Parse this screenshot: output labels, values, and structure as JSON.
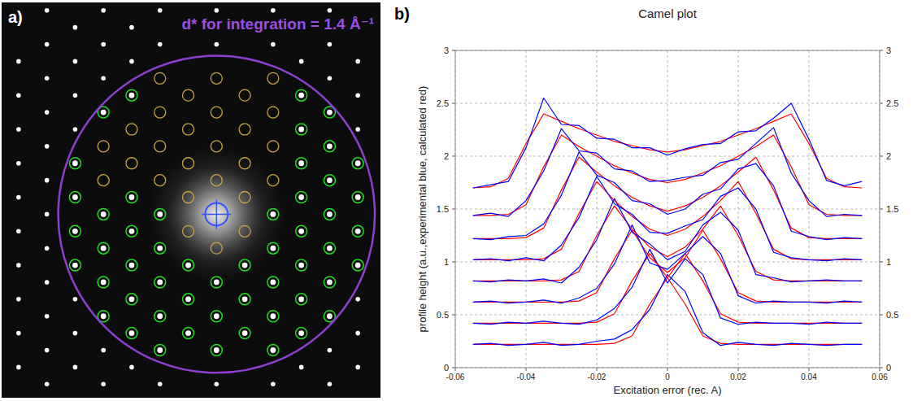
{
  "chart_data": [
    {
      "type": "scatter",
      "panel": "a)",
      "title": "d* for integration = 1.4 Å⁻¹",
      "integration_d": 1.4,
      "xlim": [
        -1.9,
        1.45
      ],
      "ylim": [
        -1.62,
        1.87
      ],
      "tick_labels": false,
      "grid": false,
      "series": [
        {
          "color": "#22dd22",
          "marker": "ring-dot",
          "x": [
            0,
            0,
            0,
            0.25,
            0.25,
            0.25,
            -0.25,
            -0.25,
            -0.25,
            0.5,
            0.5,
            0.5,
            0.5,
            0.5,
            -0.5,
            -0.5,
            -0.5,
            -0.5,
            -0.5,
            0.75,
            0.75,
            0.75,
            0.75,
            0.75,
            0.75,
            0.75,
            0.75,
            -0.75,
            -0.75,
            -0.75,
            -0.75,
            -0.75,
            -0.75,
            1,
            1,
            1,
            1,
            1,
            1,
            1,
            -1,
            -1,
            -1,
            -1,
            -1,
            1.25,
            1.25,
            1.25,
            1.25,
            -1.25,
            -1.25,
            -1.25,
            -1.25
          ],
          "values": [
            -1.2,
            -0.9,
            -0.6,
            -1.05,
            -0.75,
            -0.45,
            -1.05,
            -0.75,
            -0.45,
            -1.2,
            -0.9,
            -0.6,
            -0.3,
            0,
            -1.2,
            -0.9,
            -0.6,
            -0.3,
            0,
            -1.05,
            -0.75,
            -0.45,
            -0.15,
            0.15,
            0.45,
            0.75,
            1.05,
            -1.05,
            -0.75,
            -0.45,
            -0.15,
            0.15,
            1.05,
            -0.9,
            -0.6,
            -0.3,
            0,
            0.3,
            0.6,
            0.9,
            -0.9,
            -0.6,
            -0.3,
            0,
            0.9,
            -0.45,
            -0.15,
            0.15,
            0.45,
            -0.45,
            -0.15,
            0.15,
            0.45
          ]
        },
        {
          "color": "#c9a447",
          "marker": "ring",
          "x": [
            0,
            0,
            0,
            0,
            0,
            0.25,
            0.25,
            0.25,
            0.25,
            0.25,
            -0.25,
            -0.25,
            -0.25,
            -0.25,
            -0.25,
            0.5,
            0.5,
            0.5,
            0.5,
            -0.5,
            -0.5,
            -0.5,
            -0.5,
            -0.75,
            -0.75,
            -1,
            -1
          ],
          "values": [
            -0.3,
            0.3,
            0.6,
            0.9,
            1.2,
            -0.15,
            0.15,
            0.45,
            0.75,
            1.05,
            -0.15,
            0.15,
            0.45,
            0.75,
            1.05,
            0.3,
            0.6,
            0.9,
            1.2,
            0.3,
            0.6,
            0.9,
            1.2,
            0.45,
            0.75,
            0.3,
            0.6
          ]
        },
        {
          "color": "#ffffff",
          "marker": "dot",
          "x": [
            0,
            0,
            0,
            0.5,
            0.5,
            0.5,
            -0.5,
            -0.5,
            -0.5,
            0.75,
            0.75,
            -0.75,
            -0.75,
            -0.75,
            1,
            1,
            1,
            1,
            1,
            -1,
            -1,
            -1,
            -1,
            -1,
            1.25,
            1.25,
            1.25,
            1.25,
            1.25,
            1.25,
            -1.25,
            -1.25,
            -1.25,
            -1.25,
            -1.25,
            -1.25,
            -1.25,
            -1.5,
            -1.5,
            -1.5,
            -1.5,
            -1.5,
            -1.5,
            -1.5,
            -1.5,
            -1.5,
            -1.5,
            -1.5,
            -1.5,
            -1.75,
            -1.75,
            -1.75,
            -1.75,
            -1.75,
            -1.75,
            -1.75,
            -1.75,
            -1.75,
            -1.75
          ],
          "values": [
            1.5,
            1.8,
            -1.5,
            1.5,
            1.8,
            -1.5,
            1.5,
            1.8,
            -1.5,
            1.35,
            -1.35,
            1.35,
            1.65,
            -1.35,
            1.2,
            1.5,
            1.8,
            -1.2,
            -1.5,
            1.2,
            1.5,
            1.8,
            -1.2,
            -1.5,
            0.75,
            1.05,
            1.35,
            -0.75,
            -1.05,
            -1.35,
            0.75,
            1.05,
            1.35,
            1.65,
            -0.75,
            -1.05,
            -1.35,
            -1.5,
            -1.2,
            -0.9,
            -0.6,
            -0.3,
            0,
            0.3,
            0.6,
            0.9,
            1.2,
            1.5,
            1.8,
            -1.35,
            -1.05,
            -0.75,
            -0.45,
            -0.15,
            0.15,
            0.45,
            0.75,
            1.05,
            1.35
          ]
        }
      ]
    },
    {
      "type": "line",
      "panel": "b)",
      "title": "Camel plot",
      "x_label": "Excitation error (rec. A)",
      "y_label": "profile height (a.u.,experimental blue, calculated red)",
      "xlim": [
        -0.06,
        0.06
      ],
      "xticks": [
        -0.06,
        -0.04,
        -0.02,
        0,
        0.02,
        0.04,
        0.06
      ],
      "ylim": [
        0,
        3
      ],
      "yticks": [
        0,
        0.5,
        1,
        1.5,
        2,
        2.5,
        3
      ],
      "grid": true,
      "x": [
        -0.055,
        -0.05,
        -0.045,
        -0.04,
        -0.035,
        -0.03,
        -0.025,
        -0.02,
        -0.015,
        -0.01,
        -0.005,
        0,
        0.005,
        0.01,
        0.015,
        0.02,
        0.025,
        0.03,
        0.035,
        0.04,
        0.045,
        0.05,
        0.055
      ],
      "series": [
        {
          "color": "#ff0000",
          "values": [
            0.22,
            0.22,
            0.22,
            0.22,
            0.22,
            0.22,
            0.22,
            0.22,
            0.23,
            0.3,
            0.6,
            0.85,
            0.6,
            0.3,
            0.23,
            0.22,
            0.22,
            0.22,
            0.22,
            0.22,
            0.22,
            0.22,
            0.22
          ]
        },
        {
          "color": "#0000ff",
          "values": [
            0.22,
            0.23,
            0.21,
            0.22,
            0.24,
            0.21,
            0.22,
            0.25,
            0.27,
            0.36,
            0.55,
            0.88,
            0.72,
            0.33,
            0.21,
            0.24,
            0.22,
            0.21,
            0.23,
            0.22,
            0.21,
            0.22,
            0.22
          ]
        },
        {
          "color": "#ff0000",
          "values": [
            0.42,
            0.42,
            0.42,
            0.42,
            0.42,
            0.42,
            0.42,
            0.43,
            0.51,
            0.82,
            1.08,
            0.85,
            1.08,
            0.82,
            0.51,
            0.43,
            0.42,
            0.42,
            0.42,
            0.42,
            0.42,
            0.42,
            0.42
          ]
        },
        {
          "color": "#0000ff",
          "values": [
            0.42,
            0.41,
            0.43,
            0.42,
            0.44,
            0.42,
            0.41,
            0.45,
            0.56,
            0.76,
            1.12,
            0.8,
            1.03,
            0.88,
            0.47,
            0.41,
            0.43,
            0.42,
            0.42,
            0.41,
            0.43,
            0.42,
            0.42
          ]
        },
        {
          "color": "#ff0000",
          "values": [
            0.62,
            0.62,
            0.62,
            0.62,
            0.62,
            0.62,
            0.63,
            0.71,
            1.03,
            1.3,
            1.04,
            0.9,
            1.04,
            1.3,
            1.03,
            0.71,
            0.63,
            0.62,
            0.62,
            0.62,
            0.62,
            0.62,
            0.62
          ]
        },
        {
          "color": "#0000ff",
          "values": [
            0.62,
            0.63,
            0.61,
            0.62,
            0.64,
            0.61,
            0.66,
            0.75,
            0.98,
            1.35,
            0.99,
            0.93,
            1.08,
            1.24,
            1.08,
            0.68,
            0.61,
            0.63,
            0.62,
            0.62,
            0.61,
            0.63,
            0.62
          ]
        },
        {
          "color": "#ff0000",
          "values": [
            0.82,
            0.82,
            0.82,
            0.82,
            0.82,
            0.83,
            0.91,
            1.25,
            1.53,
            1.31,
            1.14,
            1.05,
            1.14,
            1.31,
            1.53,
            1.25,
            0.91,
            0.83,
            0.82,
            0.82,
            0.82,
            0.82,
            0.82
          ]
        },
        {
          "color": "#0000ff",
          "values": [
            0.82,
            0.81,
            0.83,
            0.82,
            0.84,
            0.8,
            0.95,
            1.21,
            1.6,
            1.28,
            1.17,
            1.02,
            1.1,
            1.35,
            1.47,
            1.3,
            0.88,
            0.85,
            0.81,
            0.82,
            0.83,
            0.82,
            0.82
          ]
        },
        {
          "color": "#ff0000",
          "values": [
            1.02,
            1.02,
            1.02,
            1.02,
            1.03,
            1.12,
            1.46,
            1.76,
            1.58,
            1.43,
            1.31,
            1.25,
            1.31,
            1.43,
            1.58,
            1.76,
            1.46,
            1.12,
            1.03,
            1.02,
            1.02,
            1.02,
            1.02
          ]
        },
        {
          "color": "#0000ff",
          "values": [
            1.02,
            1.03,
            1.01,
            1.04,
            1.01,
            1.16,
            1.42,
            1.81,
            1.55,
            1.45,
            1.28,
            1.27,
            1.34,
            1.4,
            1.62,
            1.7,
            1.5,
            1.09,
            1.04,
            1.02,
            1.01,
            1.03,
            1.02
          ]
        },
        {
          "color": "#ff0000",
          "values": [
            1.22,
            1.22,
            1.22,
            1.23,
            1.32,
            1.68,
            1.99,
            1.85,
            1.72,
            1.61,
            1.53,
            1.48,
            1.53,
            1.61,
            1.72,
            1.85,
            1.99,
            1.68,
            1.32,
            1.23,
            1.22,
            1.22,
            1.22
          ]
        },
        {
          "color": "#0000ff",
          "values": [
            1.22,
            1.21,
            1.24,
            1.25,
            1.36,
            1.63,
            2.04,
            1.82,
            1.75,
            1.58,
            1.55,
            1.45,
            1.5,
            1.64,
            1.69,
            1.88,
            1.93,
            1.72,
            1.29,
            1.24,
            1.21,
            1.23,
            1.22
          ]
        },
        {
          "color": "#ff0000",
          "values": [
            1.44,
            1.44,
            1.45,
            1.54,
            1.9,
            2.2,
            2.09,
            2.0,
            1.91,
            1.84,
            1.78,
            1.75,
            1.78,
            1.84,
            1.91,
            2.0,
            2.09,
            2.2,
            1.9,
            1.54,
            1.45,
            1.44,
            1.44
          ]
        },
        {
          "color": "#0000ff",
          "values": [
            1.44,
            1.46,
            1.43,
            1.58,
            1.86,
            2.26,
            2.05,
            2.03,
            1.88,
            1.86,
            1.76,
            1.77,
            1.8,
            1.82,
            1.94,
            1.97,
            2.12,
            2.27,
            1.84,
            1.58,
            1.43,
            1.45,
            1.44
          ]
        },
        {
          "color": "#ff0000",
          "values": [
            1.7,
            1.71,
            1.79,
            2.12,
            2.4,
            2.33,
            2.26,
            2.2,
            2.14,
            2.1,
            2.06,
            2.04,
            2.06,
            2.1,
            2.14,
            2.2,
            2.26,
            2.33,
            2.4,
            2.12,
            1.79,
            1.71,
            1.7
          ]
        },
        {
          "color": "#0000ff",
          "values": [
            1.7,
            1.73,
            1.76,
            2.08,
            2.55,
            2.3,
            2.29,
            2.17,
            2.16,
            2.08,
            2.08,
            2.01,
            2.07,
            2.11,
            2.12,
            2.23,
            2.24,
            2.36,
            2.5,
            2.16,
            1.77,
            1.72,
            1.76
          ]
        }
      ]
    }
  ]
}
